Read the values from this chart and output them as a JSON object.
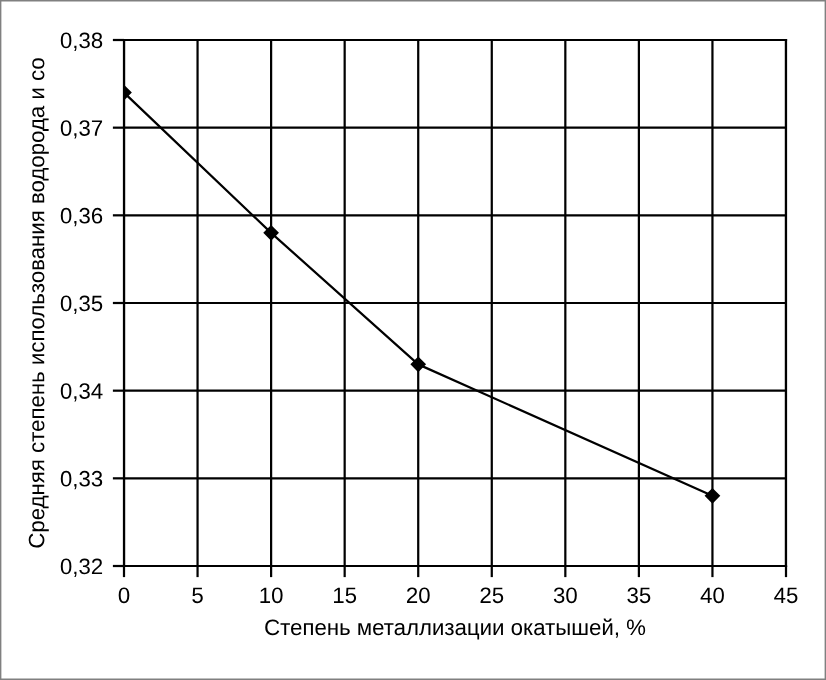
{
  "chart_data": {
    "type": "line",
    "xlabel": "Степень металлизации окатышей, %",
    "ylabel": "Средняя степень использования водорода и со",
    "x": [
      0,
      10,
      20,
      40
    ],
    "series": [
      {
        "color": "#000000",
        "values": [
          0.374,
          0.358,
          0.343,
          0.328
        ]
      }
    ],
    "xlim": [
      0,
      45
    ],
    "xticks": [
      0,
      5,
      10,
      15,
      20,
      25,
      30,
      35,
      40,
      45
    ],
    "ylim": [
      0.32,
      0.38
    ],
    "yticks": [
      {
        "value": 0.32,
        "label": "0,32"
      },
      {
        "value": 0.33,
        "label": "0,33"
      },
      {
        "value": 0.34,
        "label": "0,34"
      },
      {
        "value": 0.35,
        "label": "0,35"
      },
      {
        "value": 0.36,
        "label": "0,36"
      },
      {
        "value": 0.37,
        "label": "0,37"
      },
      {
        "value": 0.38,
        "label": "0,38"
      }
    ],
    "grid": true,
    "marker": "diamond",
    "line_style": "solid"
  }
}
